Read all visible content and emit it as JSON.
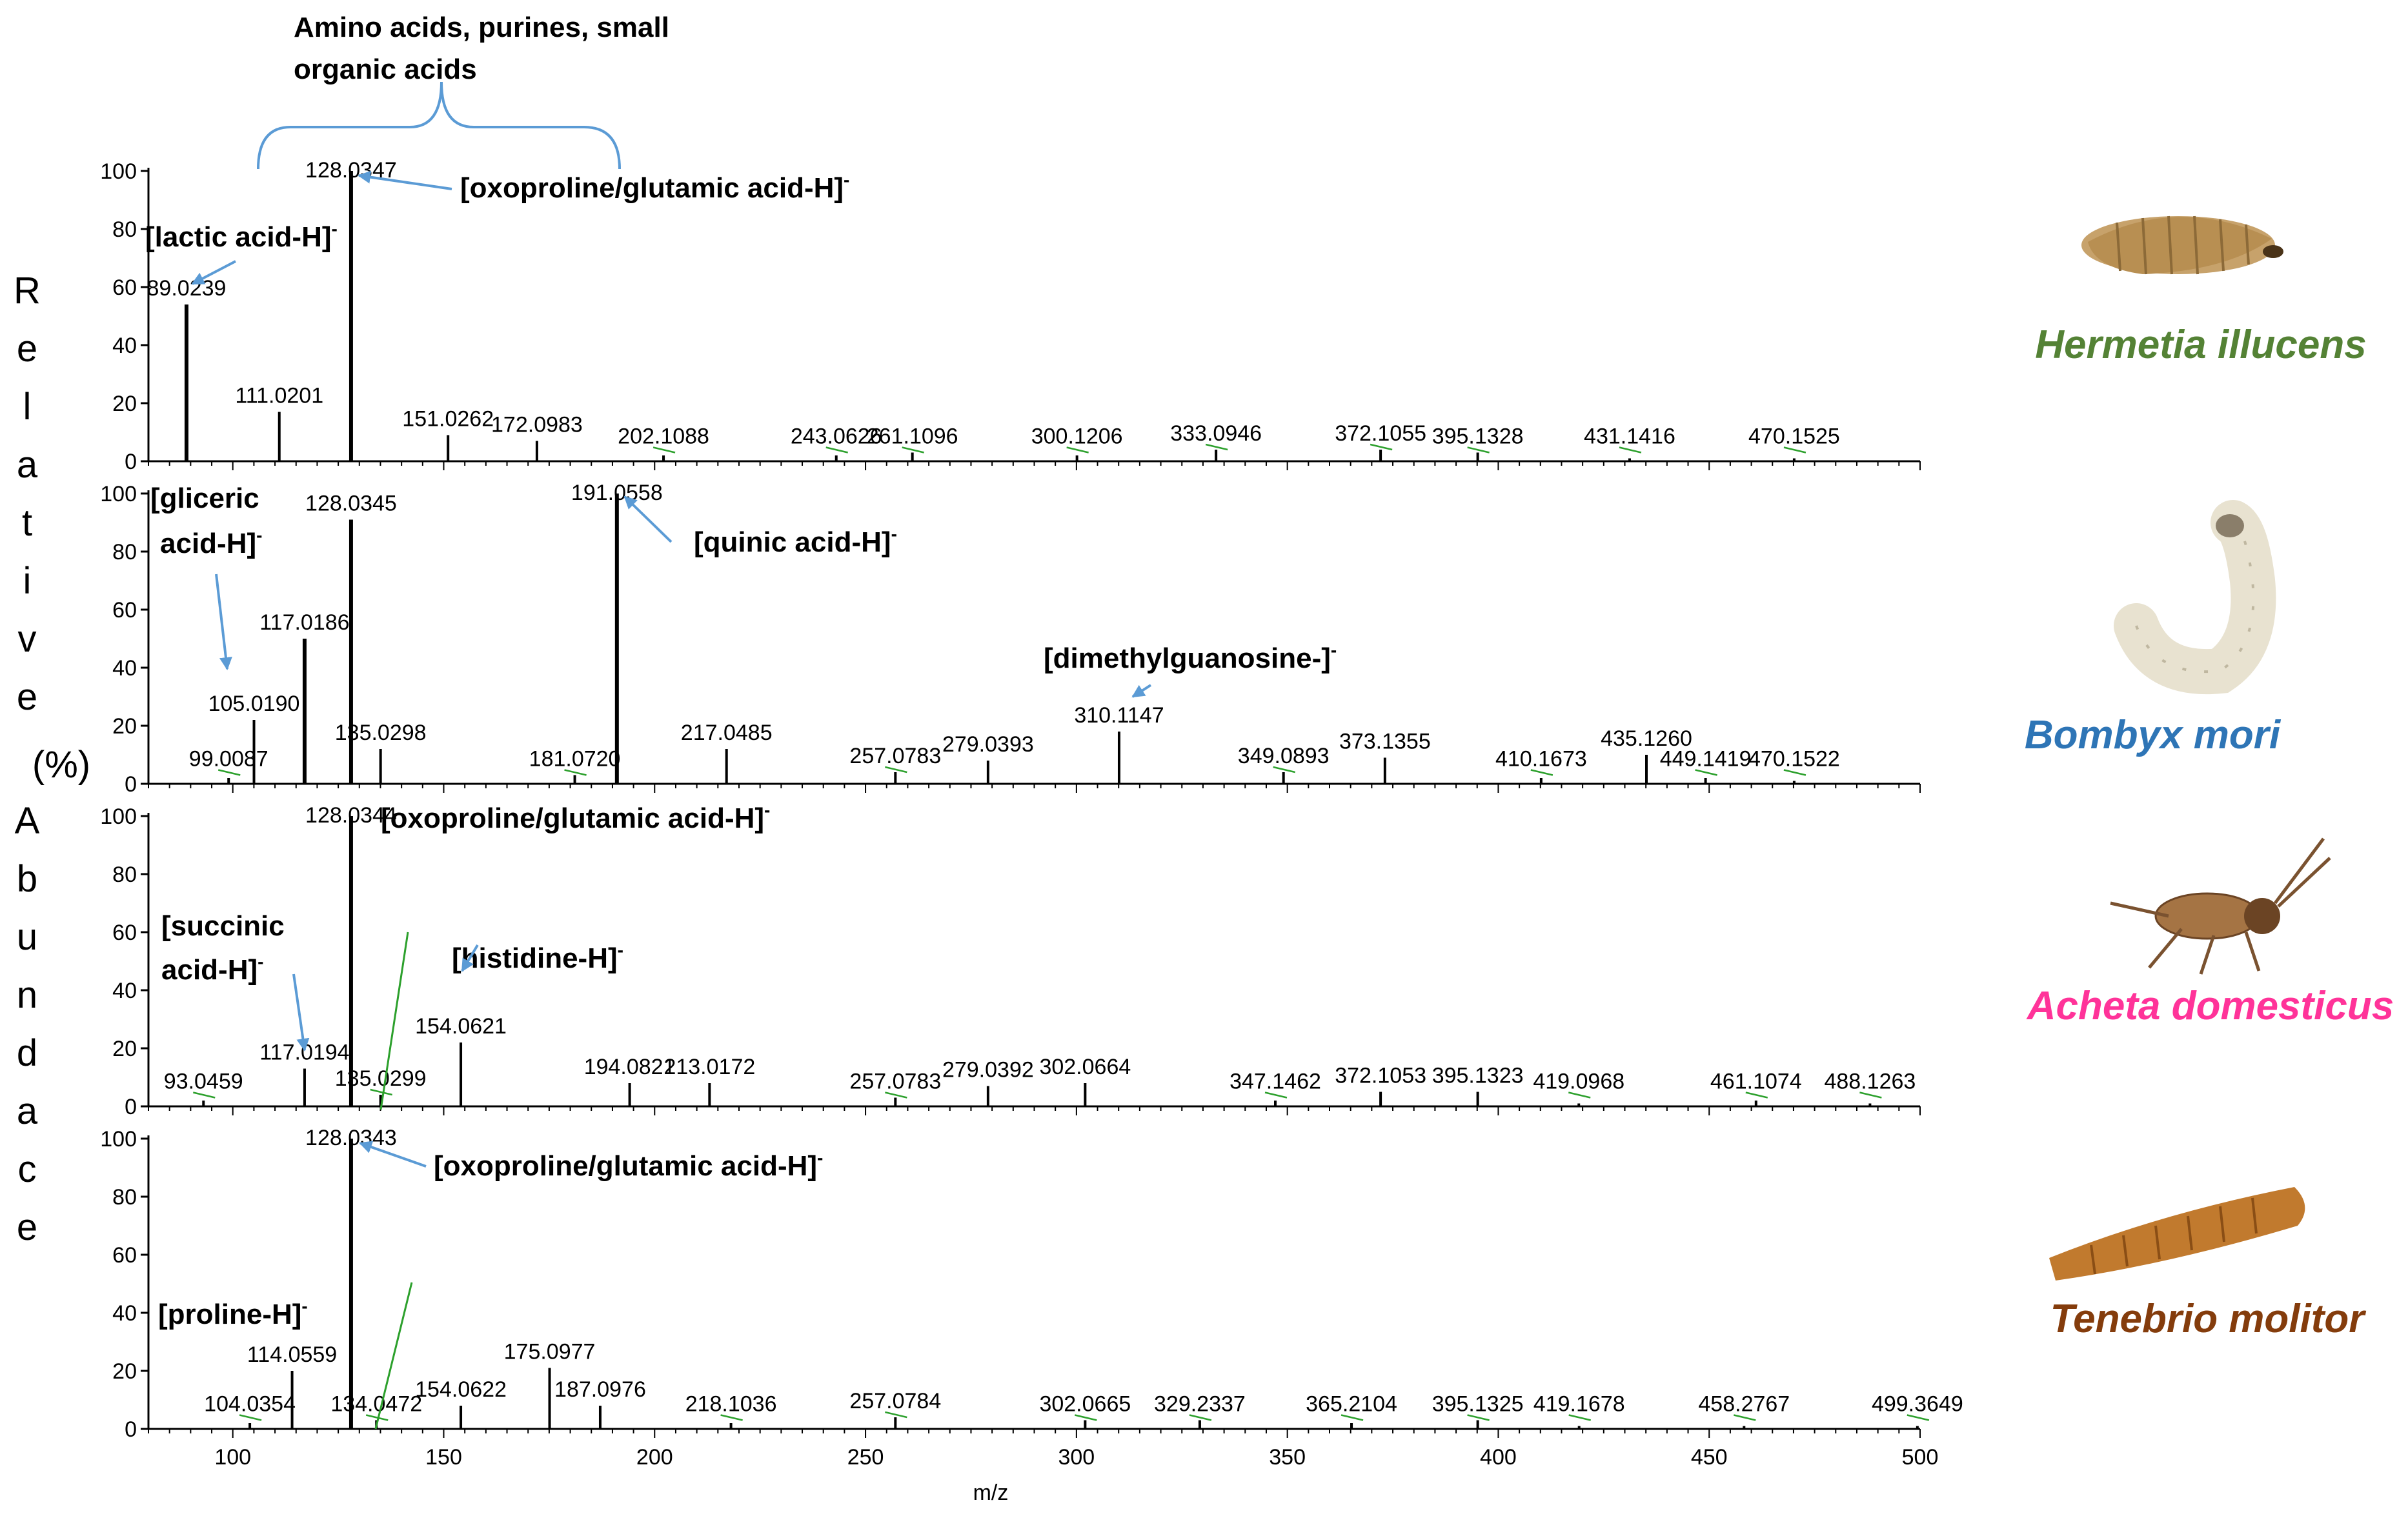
{
  "figure": {
    "top_bracket_line1": "Amino acids,  purines, small",
    "top_bracket_line2": "organic acids",
    "y_axis_title": "Relative Abundace (%)",
    "x_axis_title": "m/z"
  },
  "colors": {
    "arrow": "#5b9bd5",
    "label_leader": "#2ca02c",
    "hermetia": "#548235",
    "bombyx": "#2e75b6",
    "acheta": "#ff3399",
    "tenebrio": "#843c0c"
  },
  "chart_data": [
    {
      "type": "bar",
      "species": "Hermetia illucens",
      "xlabel": "",
      "ylabel": "",
      "xlim": [
        80,
        500
      ],
      "ylim": [
        0,
        100
      ],
      "yticks": [
        0,
        20,
        40,
        60,
        80,
        100
      ],
      "peaks": [
        {
          "mz": 89.0239,
          "intensity": 54,
          "label": "89.0239"
        },
        {
          "mz": 111.0201,
          "intensity": 17,
          "label": "111.0201"
        },
        {
          "mz": 128.0347,
          "intensity": 100,
          "label": "128.0347"
        },
        {
          "mz": 151.0262,
          "intensity": 9,
          "label": "151.0262"
        },
        {
          "mz": 172.0983,
          "intensity": 7,
          "label": "172.0983"
        },
        {
          "mz": 202.1088,
          "intensity": 2,
          "label": "202.1088"
        },
        {
          "mz": 243.0626,
          "intensity": 2,
          "label": "243.0626"
        },
        {
          "mz": 261.1096,
          "intensity": 3,
          "label": "261.1096"
        },
        {
          "mz": 300.1206,
          "intensity": 2,
          "label": "300.1206"
        },
        {
          "mz": 333.0946,
          "intensity": 4,
          "label": "333.0946"
        },
        {
          "mz": 372.1055,
          "intensity": 4,
          "label": "372.1055"
        },
        {
          "mz": 395.1328,
          "intensity": 3,
          "label": "395.1328"
        },
        {
          "mz": 431.1416,
          "intensity": 1,
          "label": "431.1416"
        },
        {
          "mz": 470.1525,
          "intensity": 1,
          "label": "470.1525"
        }
      ],
      "annotations": [
        {
          "text": "[lactic acid-H]",
          "sup": "-"
        },
        {
          "text": "[oxoproline/glutamic acid-H]",
          "sup": "-"
        }
      ]
    },
    {
      "type": "bar",
      "species": "Bombyx mori",
      "xlabel": "",
      "ylabel": "",
      "xlim": [
        80,
        500
      ],
      "ylim": [
        0,
        100
      ],
      "yticks": [
        0,
        20,
        40,
        60,
        80,
        100
      ],
      "peaks": [
        {
          "mz": 99.0087,
          "intensity": 2,
          "label": "99.0087"
        },
        {
          "mz": 105.019,
          "intensity": 22,
          "label": "105.0190"
        },
        {
          "mz": 117.0186,
          "intensity": 50,
          "label": "117.0186"
        },
        {
          "mz": 128.0345,
          "intensity": 91,
          "label": "128.0345"
        },
        {
          "mz": 135.0298,
          "intensity": 12,
          "label": "135.0298"
        },
        {
          "mz": 181.072,
          "intensity": 3,
          "label": "181.0720"
        },
        {
          "mz": 191.0558,
          "intensity": 100,
          "label": "191.0558"
        },
        {
          "mz": 217.0485,
          "intensity": 12,
          "label": "217.0485"
        },
        {
          "mz": 257.0783,
          "intensity": 4,
          "label": "257.0783"
        },
        {
          "mz": 279.0393,
          "intensity": 8,
          "label": "279.0393"
        },
        {
          "mz": 310.1147,
          "intensity": 18,
          "label": "310.1147"
        },
        {
          "mz": 349.0893,
          "intensity": 4,
          "label": "349.0893"
        },
        {
          "mz": 373.1355,
          "intensity": 9,
          "label": "373.1355"
        },
        {
          "mz": 410.1673,
          "intensity": 2,
          "label": "410.1673"
        },
        {
          "mz": 435.126,
          "intensity": 10,
          "label": "435.1260"
        },
        {
          "mz": 449.1419,
          "intensity": 2,
          "label": "449.1419"
        },
        {
          "mz": 470.1522,
          "intensity": 1,
          "label": "470.1522"
        }
      ],
      "annotations": [
        {
          "text": "[gliceric",
          "sup": ""
        },
        {
          "text": "acid-H]",
          "sup": "-"
        },
        {
          "text": "[quinic acid-H]",
          "sup": "-"
        },
        {
          "text": "[dimethylguanosine-]",
          "sup": "-"
        }
      ]
    },
    {
      "type": "bar",
      "species": "Acheta domesticus",
      "xlabel": "",
      "ylabel": "",
      "xlim": [
        80,
        500
      ],
      "ylim": [
        0,
        100
      ],
      "yticks": [
        0,
        20,
        40,
        60,
        80,
        100
      ],
      "peaks": [
        {
          "mz": 93.0459,
          "intensity": 2,
          "label": "93.0459"
        },
        {
          "mz": 117.0194,
          "intensity": 13,
          "label": "117.0194"
        },
        {
          "mz": 128.0344,
          "intensity": 100,
          "label": "128.0344"
        },
        {
          "mz": 135.0299,
          "intensity": 4,
          "label": "135.0299"
        },
        {
          "mz": 154.0621,
          "intensity": 22,
          "label": "154.0621"
        },
        {
          "mz": 194.0821,
          "intensity": 8,
          "label": "194.0821"
        },
        {
          "mz": 213.0172,
          "intensity": 8,
          "label": "213.0172"
        },
        {
          "mz": 257.0783,
          "intensity": 3,
          "label": "257.0783"
        },
        {
          "mz": 279.0392,
          "intensity": 7,
          "label": "279.0392"
        },
        {
          "mz": 302.0664,
          "intensity": 8,
          "label": "302.0664"
        },
        {
          "mz": 347.1462,
          "intensity": 2,
          "label": "347.1462"
        },
        {
          "mz": 372.1053,
          "intensity": 5,
          "label": "372.1053"
        },
        {
          "mz": 395.1323,
          "intensity": 5,
          "label": "395.1323"
        },
        {
          "mz": 419.0968,
          "intensity": 1,
          "label": "419.0968"
        },
        {
          "mz": 461.1074,
          "intensity": 2,
          "label": "461.1074"
        },
        {
          "mz": 488.1263,
          "intensity": 1,
          "label": "488.1263"
        }
      ],
      "annotations": [
        {
          "text": "[oxoproline/glutamic acid-H]",
          "sup": "-"
        },
        {
          "text": "[succinic",
          "sup": ""
        },
        {
          "text": "acid-H]",
          "sup": "-"
        },
        {
          "text": "[histidine-H]",
          "sup": "-"
        }
      ]
    },
    {
      "type": "bar",
      "species": "Tenebrio molitor",
      "xlabel": "m/z",
      "ylabel": "",
      "xlim": [
        80,
        500
      ],
      "ylim": [
        0,
        100
      ],
      "yticks": [
        0,
        20,
        40,
        60,
        80,
        100
      ],
      "xticks": [
        100,
        150,
        200,
        250,
        300,
        350,
        400,
        450,
        500
      ],
      "peaks": [
        {
          "mz": 104.0354,
          "intensity": 2,
          "label": "104.0354"
        },
        {
          "mz": 114.0559,
          "intensity": 20,
          "label": "114.0559"
        },
        {
          "mz": 128.0343,
          "intensity": 100,
          "label": "128.0343"
        },
        {
          "mz": 134.0472,
          "intensity": 3,
          "label": "134.0472"
        },
        {
          "mz": 154.0622,
          "intensity": 8,
          "label": "154.0622"
        },
        {
          "mz": 175.0977,
          "intensity": 21,
          "label": "175.0977"
        },
        {
          "mz": 187.0976,
          "intensity": 8,
          "label": "187.0976"
        },
        {
          "mz": 218.1036,
          "intensity": 2,
          "label": "218.1036"
        },
        {
          "mz": 257.0784,
          "intensity": 4,
          "label": "257.0784"
        },
        {
          "mz": 302.0665,
          "intensity": 3,
          "label": "302.0665"
        },
        {
          "mz": 329.2337,
          "intensity": 3,
          "label": "329.2337"
        },
        {
          "mz": 365.2104,
          "intensity": 2,
          "label": "365.2104"
        },
        {
          "mz": 395.1325,
          "intensity": 3,
          "label": "395.1325"
        },
        {
          "mz": 419.1678,
          "intensity": 1,
          "label": "419.1678"
        },
        {
          "mz": 458.2767,
          "intensity": 1,
          "label": "458.2767"
        },
        {
          "mz": 499.3649,
          "intensity": 1,
          "label": "499.3649"
        }
      ],
      "annotations": [
        {
          "text": "[oxoproline/glutamic acid-H]",
          "sup": "-"
        },
        {
          "text": "[proline-H]",
          "sup": "-"
        }
      ]
    }
  ]
}
